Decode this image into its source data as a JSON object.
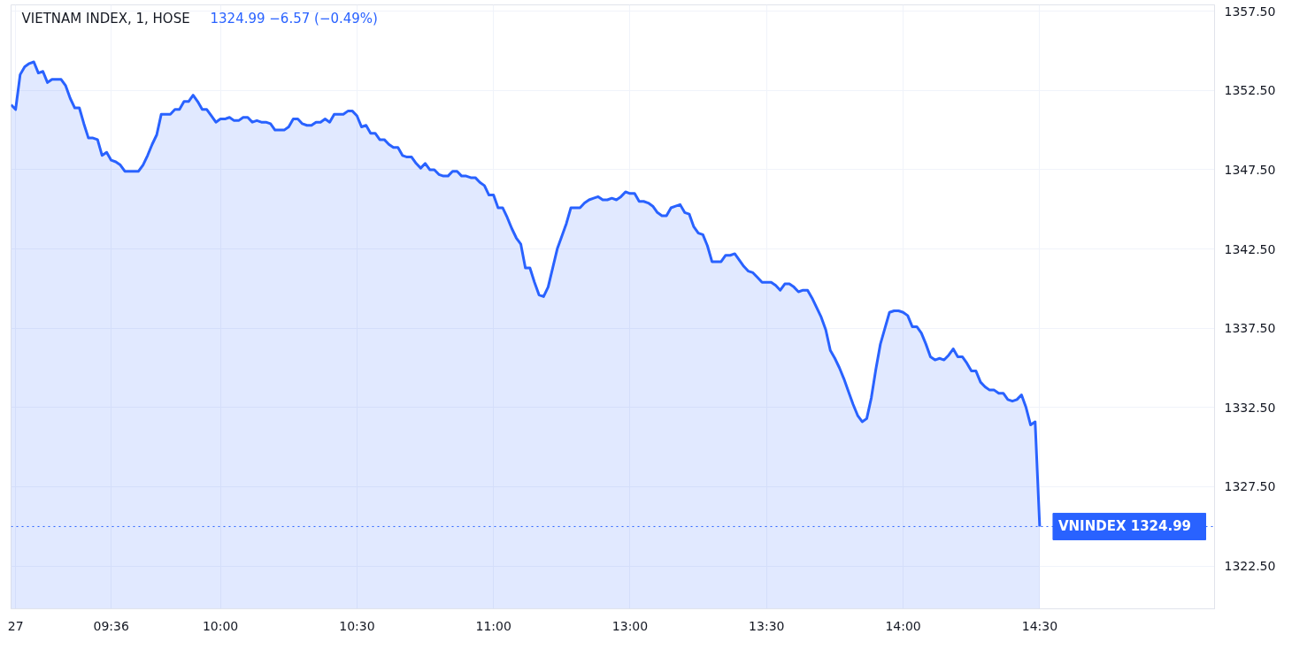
{
  "chart_data": {
    "type": "area",
    "title": "VIETNAM INDEX, 1, HOSE",
    "subtitle": "1324.99  −6.57 (−0.49%)",
    "categories": [
      null,
      "27",
      null,
      null,
      null,
      null,
      null,
      null,
      null,
      null,
      null,
      null,
      null,
      null,
      null,
      null,
      null,
      null,
      null,
      null,
      null,
      null,
      "09:36",
      null,
      null,
      null,
      null,
      null,
      null,
      null,
      null,
      null,
      null,
      null,
      null,
      null,
      null,
      null,
      null,
      null,
      null,
      null,
      null,
      null,
      null,
      null,
      "10:00",
      null,
      null,
      null,
      null,
      null,
      null,
      null,
      null,
      null,
      null,
      null,
      null,
      null,
      null,
      null,
      null,
      null,
      null,
      null,
      null,
      null,
      null,
      null,
      null,
      null,
      null,
      null,
      null,
      null,
      "10:30",
      null,
      null,
      null,
      null,
      null,
      null,
      null,
      null,
      null,
      null,
      null,
      null,
      null,
      null,
      null,
      null,
      null,
      null,
      null,
      null,
      null,
      null,
      null,
      null,
      null,
      null,
      null,
      null,
      null,
      "11:00",
      null,
      null,
      null,
      null,
      null,
      null,
      null,
      null,
      null,
      null,
      null,
      null,
      null,
      null,
      null,
      null,
      null,
      null,
      null,
      null,
      null,
      null,
      null,
      null,
      null,
      null,
      null,
      null,
      null,
      "13:00",
      null,
      null,
      null,
      null,
      null,
      null,
      null,
      null,
      null,
      null,
      null,
      null,
      null,
      null,
      null,
      null,
      null,
      null,
      null,
      null,
      null,
      null,
      null,
      null,
      null,
      null,
      null,
      null,
      null,
      "13:30",
      null,
      null,
      null,
      null,
      null,
      null,
      null,
      null,
      null,
      null,
      null,
      null,
      null,
      null,
      null,
      null,
      null,
      null,
      null,
      null,
      null,
      null,
      null,
      null,
      null,
      null,
      null,
      null,
      null,
      "14:00",
      null,
      null,
      null,
      null,
      null,
      null,
      null,
      null,
      null,
      null,
      null,
      null,
      null,
      null,
      null,
      null,
      null,
      null,
      null,
      null,
      null,
      null,
      null,
      null,
      null,
      null,
      null,
      null,
      null,
      "14:30"
    ],
    "series": [
      {
        "color": "#2962ff",
        "values": [
          1351.6,
          1351.3,
          1353.5,
          1354.0,
          1354.2,
          1354.3,
          1353.6,
          1353.7,
          1353.0,
          1353.2,
          1353.2,
          1353.2,
          1352.8,
          1352.0,
          1351.4,
          1351.4,
          1350.4,
          1349.5,
          1349.5,
          1349.4,
          1348.4,
          1348.6,
          1348.1,
          1348.0,
          1347.8,
          1347.4,
          1347.4,
          1347.4,
          1347.4,
          1347.8,
          1348.4,
          1349.1,
          1349.7,
          1351.0,
          1351.0,
          1351.0,
          1351.3,
          1351.3,
          1351.8,
          1351.8,
          1352.2,
          1351.8,
          1351.3,
          1351.3,
          1350.9,
          1350.5,
          1350.7,
          1350.7,
          1350.8,
          1350.6,
          1350.6,
          1350.8,
          1350.8,
          1350.5,
          1350.6,
          1350.5,
          1350.5,
          1350.4,
          1350.0,
          1350.0,
          1350.0,
          1350.2,
          1350.7,
          1350.7,
          1350.4,
          1350.3,
          1350.3,
          1350.5,
          1350.5,
          1350.7,
          1350.5,
          1351.0,
          1351.0,
          1351.0,
          1351.2,
          1351.2,
          1350.9,
          1350.2,
          1350.3,
          1349.8,
          1349.8,
          1349.4,
          1349.4,
          1349.1,
          1348.9,
          1348.9,
          1348.4,
          1348.3,
          1348.3,
          1347.9,
          1347.6,
          1347.9,
          1347.5,
          1347.5,
          1347.2,
          1347.1,
          1347.1,
          1347.4,
          1347.4,
          1347.1,
          1347.1,
          1347.0,
          1347.0,
          1346.7,
          1346.5,
          1345.9,
          1345.9,
          1345.1,
          1345.1,
          1344.5,
          1343.8,
          1343.2,
          1342.8,
          1341.3,
          1341.3,
          1340.4,
          1339.6,
          1339.5,
          1340.1,
          1341.3,
          1342.5,
          1343.3,
          1344.1,
          1345.1,
          1345.1,
          1345.1,
          1345.4,
          1345.6,
          1345.7,
          1345.8,
          1345.6,
          1345.6,
          1345.7,
          1345.6,
          1345.8,
          1346.1,
          1346.0,
          1346.0,
          1345.5,
          1345.5,
          1345.4,
          1345.2,
          1344.8,
          1344.6,
          1344.6,
          1345.1,
          1345.2,
          1345.3,
          1344.8,
          1344.7,
          1343.9,
          1343.5,
          1343.4,
          1342.7,
          1341.7,
          1341.7,
          1341.7,
          1342.1,
          1342.1,
          1342.2,
          1341.8,
          1341.4,
          1341.1,
          1341.0,
          1340.7,
          1340.4,
          1340.4,
          1340.4,
          1340.2,
          1339.9,
          1340.3,
          1340.3,
          1340.1,
          1339.8,
          1339.9,
          1339.9,
          1339.4,
          1338.8,
          1338.2,
          1337.4,
          1336.1,
          1335.6,
          1335.0,
          1334.3,
          1333.5,
          1332.7,
          1332.0,
          1331.6,
          1331.8,
          1333.1,
          1334.9,
          1336.5,
          1337.5,
          1338.5,
          1338.6,
          1338.6,
          1338.5,
          1338.3,
          1337.6,
          1337.6,
          1337.2,
          1336.5,
          1335.7,
          1335.5,
          1335.6,
          1335.5,
          1335.8,
          1336.2,
          1335.7,
          1335.7,
          1335.3,
          1334.8,
          1334.8,
          1334.1,
          1333.8,
          1333.6,
          1333.6,
          1333.4,
          1333.4,
          1333.0,
          1332.9,
          1333.0,
          1333.3,
          1332.5,
          1331.4,
          1331.6,
          1324.99
        ]
      }
    ],
    "ylim": [
      1319.8,
      1357.9
    ],
    "yticks": [
      {
        "value": 1322.5,
        "label": "1322.50"
      },
      {
        "value": 1327.5,
        "label": "1327.50"
      },
      {
        "value": 1332.5,
        "label": "1332.50"
      },
      {
        "value": 1337.5,
        "label": "1337.50"
      },
      {
        "value": 1342.5,
        "label": "1342.50"
      },
      {
        "value": 1347.5,
        "label": "1347.50"
      },
      {
        "value": 1352.5,
        "label": "1352.50"
      },
      {
        "value": 1357.5,
        "label": "1357.50"
      }
    ],
    "grid": true,
    "ref_lines": [
      {
        "axis": "y",
        "value": 1324.99,
        "label": "VNINDEX   1324.99",
        "color": "#2962ff",
        "line_style": "dotted"
      }
    ]
  }
}
